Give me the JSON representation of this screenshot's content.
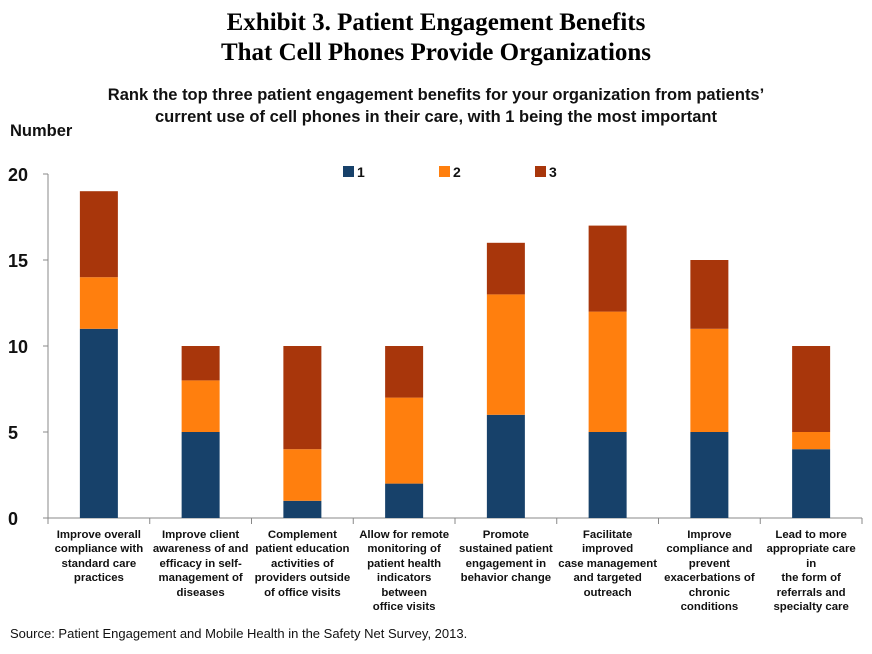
{
  "header": {
    "title_line1": "Exhibit 3. Patient Engagement Benefits",
    "title_line2": "That Cell Phones Provide Organizations",
    "subtitle_line1": "Rank the top three patient engagement benefits for your organization from patients’",
    "subtitle_line2": "current use of cell phones in their care, with 1 being the most important"
  },
  "source": "Source: Patient Engagement and Mobile Health in the Safety Net Survey, 2013.",
  "chart_data": {
    "type": "bar",
    "stacked": true,
    "ylabel": "Number",
    "ylim": [
      0,
      20
    ],
    "yticks": [
      0,
      5,
      10,
      15,
      20
    ],
    "legend_position": "top-center",
    "categories": [
      [
        "Improve overall",
        "compliance with",
        "standard care",
        "practices"
      ],
      [
        "Improve client",
        "awareness of and",
        "efficacy in self-",
        "management of",
        "diseases"
      ],
      [
        "Complement",
        "patient education",
        "activities of",
        "providers outside",
        "of office visits"
      ],
      [
        "Allow for remote",
        "monitoring of",
        "patient health",
        "indicators between",
        "office visits"
      ],
      [
        "Promote",
        "sustained patient",
        "engagement in",
        "behavior change"
      ],
      [
        "Facilitate improved",
        "case management",
        "and targeted",
        "outreach"
      ],
      [
        "Improve",
        "compliance and",
        "prevent",
        "exacerbations of",
        "chronic conditions"
      ],
      [
        "Lead to more",
        "appropriate care in",
        "the form of",
        "referrals and",
        "specialty care"
      ]
    ],
    "series": [
      {
        "name": "1",
        "color": "#17416a",
        "values": [
          11,
          5,
          1,
          2,
          6,
          5,
          5,
          4
        ]
      },
      {
        "name": "2",
        "color": "#ff7f0e",
        "values": [
          3,
          3,
          3,
          5,
          7,
          7,
          6,
          1
        ]
      },
      {
        "name": "3",
        "color": "#a8360b",
        "values": [
          5,
          2,
          6,
          3,
          3,
          5,
          4,
          5
        ]
      }
    ]
  }
}
